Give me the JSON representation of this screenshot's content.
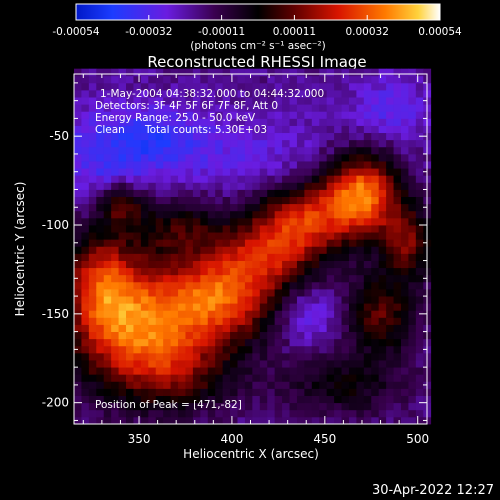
{
  "colorbar": {
    "ticks": [
      "-0.00054",
      "-0.00032",
      "-0.00011",
      "0.00011",
      "0.00032",
      "0.00054"
    ],
    "unit_label": "(photons cm⁻² s⁻¹ asec⁻²)"
  },
  "chart_data": {
    "type": "heatmap",
    "title": "Reconstructed RHESSI Image",
    "xlabel": "Heliocentric X (arcsec)",
    "ylabel": "Heliocentric Y (arcsec)",
    "xlim": [
      315,
      505
    ],
    "ylim": [
      -212,
      -15
    ],
    "xticks": [
      350,
      400,
      450,
      500
    ],
    "yticks": [
      -50,
      -100,
      -150,
      -200
    ],
    "annotations": {
      "time": "1-May-2004 04:38:32.000 to 04:44:32.000",
      "detectors": "Detectors: 3F 4F 5F 6F 7F 8F, Att 0",
      "energy": "Energy Range: 25.0 - 50.0 keV",
      "method": "Clean",
      "counts": "Total counts: 5.30E+03",
      "peak": "Position of Peak = [471,-82]"
    },
    "peak": {
      "x": 471,
      "y": -82
    },
    "color_range": [
      -0.00054,
      0.00054
    ],
    "blobs": [
      {
        "x": 471,
        "y": -82,
        "amp": 0.00054,
        "sx": 14,
        "sy": 16
      },
      {
        "x": 440,
        "y": -95,
        "amp": 0.00038,
        "sx": 18,
        "sy": 14
      },
      {
        "x": 350,
        "y": -160,
        "amp": 0.0005,
        "sx": 26,
        "sy": 24
      },
      {
        "x": 395,
        "y": -140,
        "amp": 0.00045,
        "sx": 24,
        "sy": 18
      },
      {
        "x": 330,
        "y": -130,
        "amp": 0.00035,
        "sx": 14,
        "sy": 20
      },
      {
        "x": 420,
        "y": -115,
        "amp": 0.0003,
        "sx": 20,
        "sy": 14
      },
      {
        "x": 340,
        "y": -88,
        "amp": 0.00028,
        "sx": 8,
        "sy": 8
      },
      {
        "x": 370,
        "y": -100,
        "amp": 0.0002,
        "sx": 18,
        "sy": 12
      },
      {
        "x": 480,
        "y": -150,
        "amp": 0.00028,
        "sx": 14,
        "sy": 16
      },
      {
        "x": 495,
        "y": -110,
        "amp": 0.0003,
        "sx": 10,
        "sy": 14
      },
      {
        "x": 460,
        "y": -190,
        "amp": 0.00018,
        "sx": 24,
        "sy": 12
      },
      {
        "x": 375,
        "y": -185,
        "amp": 0.00015,
        "sx": 22,
        "sy": 14
      },
      {
        "x": 400,
        "y": -60,
        "amp": -0.0001,
        "sx": 40,
        "sy": 16
      },
      {
        "x": 440,
        "y": -150,
        "amp": -0.00016,
        "sx": 14,
        "sy": 12
      },
      {
        "x": 330,
        "y": -60,
        "amp": -0.00015,
        "sx": 18,
        "sy": 18
      },
      {
        "x": 360,
        "y": -50,
        "amp": -0.00014,
        "sx": 16,
        "sy": 12
      },
      {
        "x": 485,
        "y": -35,
        "amp": -0.00012,
        "sx": 16,
        "sy": 14
      }
    ]
  },
  "footer": {
    "timestamp": "30-Apr-2022 12:27"
  }
}
